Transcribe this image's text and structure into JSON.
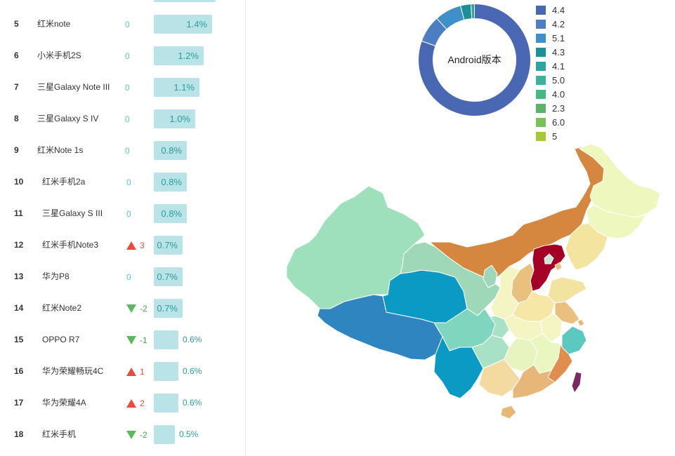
{
  "ranking": [
    {
      "rank": "5",
      "name": "红米note",
      "change": "0",
      "dir": "zero",
      "pct": "1.4%",
      "share": 1.4
    },
    {
      "rank": "6",
      "name": "小米手机2S",
      "change": "0",
      "dir": "zero",
      "pct": "1.2%",
      "share": 1.2
    },
    {
      "rank": "7",
      "name": "三星Galaxy Note III",
      "change": "0",
      "dir": "zero",
      "pct": "1.1%",
      "share": 1.1
    },
    {
      "rank": "8",
      "name": "三星Galaxy S IV",
      "change": "0",
      "dir": "zero",
      "pct": "1.0%",
      "share": 1.0
    },
    {
      "rank": "9",
      "name": "红米Note 1s",
      "change": "0",
      "dir": "zero",
      "pct": "0.8%",
      "share": 0.8
    },
    {
      "rank": "10",
      "name": "红米手机2a",
      "change": "0",
      "dir": "zero",
      "pct": "0.8%",
      "share": 0.8
    },
    {
      "rank": "11",
      "name": "三星Galaxy S III",
      "change": "0",
      "dir": "zero",
      "pct": "0.8%",
      "share": 0.8
    },
    {
      "rank": "12",
      "name": "红米手机Note3",
      "change": "3",
      "dir": "up",
      "pct": "0.7%",
      "share": 0.7
    },
    {
      "rank": "13",
      "name": "华为P8",
      "change": "0",
      "dir": "zero",
      "pct": "0.7%",
      "share": 0.7
    },
    {
      "rank": "14",
      "name": "红米Note2",
      "change": "-2",
      "dir": "down",
      "pct": "0.7%",
      "share": 0.7
    },
    {
      "rank": "15",
      "name": "OPPO R7",
      "change": "-1",
      "dir": "down",
      "pct": "0.6%",
      "share": 0.6
    },
    {
      "rank": "16",
      "name": "华为荣耀畅玩4C",
      "change": "1",
      "dir": "up",
      "pct": "0.6%",
      "share": 0.6
    },
    {
      "rank": "17",
      "name": "华为荣耀4A",
      "change": "2",
      "dir": "up",
      "pct": "0.6%",
      "share": 0.6
    },
    {
      "rank": "18",
      "name": "红米手机",
      "change": "-2",
      "dir": "down",
      "pct": "0.5%",
      "share": 0.5
    }
  ],
  "android_chart": {
    "center_label": "Android版本",
    "legend": [
      {
        "label": "4.4",
        "color": "#4a67b4"
      },
      {
        "label": "4.2",
        "color": "#4d7ec4"
      },
      {
        "label": "5.1",
        "color": "#3f8fcb"
      },
      {
        "label": "4.3",
        "color": "#1d8f97"
      },
      {
        "label": "4.1",
        "color": "#2aa5a0"
      },
      {
        "label": "5.0",
        "color": "#3db29a"
      },
      {
        "label": "4.0",
        "color": "#45b884"
      },
      {
        "label": "2.3",
        "color": "#5bb36a"
      },
      {
        "label": "6.0",
        "color": "#7cc05c"
      },
      {
        "label": "5",
        "color": "#a8c838"
      }
    ],
    "slice_fractions": [
      0.805,
      0.078,
      0.077,
      0.03,
      0.01
    ]
  },
  "map_colors": {
    "xinjiang": "#9de0bb",
    "tibet": "#2f85bf",
    "qinghai": "#0a9ac4",
    "gansu": "#9fd8b8",
    "innermongolia": "#d5873f",
    "heilongjiang": "#eef8be",
    "jilin": "#eef8be",
    "liaoning": "#f3e4a0",
    "hebei": "#a50026",
    "beijing": "#c7ebd5",
    "shanxi": "#eac07e",
    "shandong": "#f2e3a0",
    "ningxia": "#9fd8b8",
    "shaanxi": "#f4f5c2",
    "sichuan": "#7fd5bd",
    "chongqing": "#a8e1c6",
    "henan": "#f6e7a7",
    "hubei": "#f4f5c2",
    "jiangsu": "#eac07e",
    "anhui": "#f4f5c2",
    "zhejiang": "#5cc9c0",
    "shanghai": "#e7b77a",
    "yunnan": "#0a9ac4",
    "guizhou": "#a8e1c6",
    "hunan": "#e7f4bf",
    "jiangxi": "#e9f6c0",
    "fujian": "#e08d4e",
    "guangxi": "#f2daa0",
    "guangdong": "#e7b77a",
    "hainan": "#e7b77a",
    "taiwan": "#7a2963",
    "tianjin": "#eac07e"
  }
}
